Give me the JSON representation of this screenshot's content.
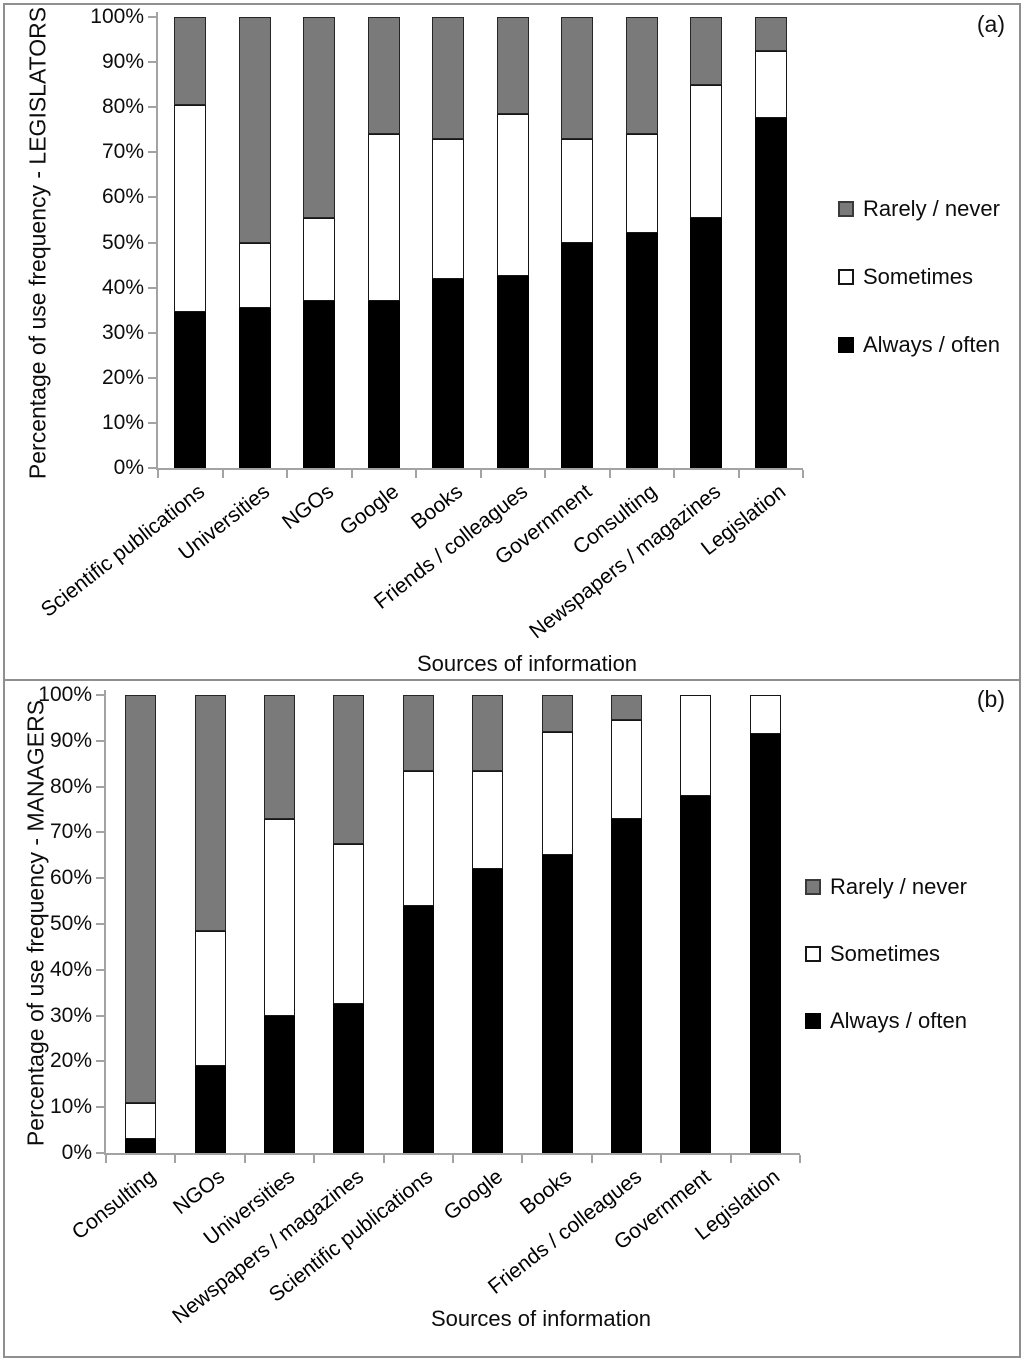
{
  "figure": {
    "background": "#ffffff",
    "border_color": "#8f8f8f",
    "series_colors": {
      "always_often": "#000000",
      "sometimes": "#ffffff",
      "rarely_never": "#7a7a7a"
    }
  },
  "y_axis": {
    "min": 0,
    "max": 100,
    "tick_labels": [
      "0%",
      "10%",
      "20%",
      "30%",
      "40%",
      "50%",
      "60%",
      "70%",
      "80%",
      "90%",
      "100%"
    ]
  },
  "legend": {
    "display_order": [
      "Rarely / never",
      "Sometimes",
      "Always / often"
    ]
  },
  "chart_data": [
    {
      "type": "bar",
      "stacked": true,
      "panel_label": "(a)",
      "ylabel": "Percentage of use frequency - LEGISLATORS",
      "xlabel": "Sources of information",
      "ylim": [
        0,
        100
      ],
      "grid": false,
      "legend_position": "right",
      "categories": [
        "Scientific publications",
        "Universities",
        "NGOs",
        "Google",
        "Books",
        "Friends / colleagues",
        "Government",
        "Consulting",
        "Newspapers / magazines",
        "Legislation"
      ],
      "series": [
        {
          "name": "Always / often",
          "color": "#000000",
          "values": [
            34.5,
            35.5,
            37,
            37,
            42,
            42.5,
            50,
            52,
            55.5,
            77.5
          ]
        },
        {
          "name": "Sometimes",
          "color": "#ffffff",
          "values": [
            46,
            14.5,
            18.5,
            37,
            31,
            36,
            23,
            22,
            29.5,
            15
          ]
        },
        {
          "name": "Rarely / never",
          "color": "#7a7a7a",
          "values": [
            19.5,
            50,
            44.5,
            26,
            27,
            21.5,
            27,
            26,
            15,
            7.5
          ]
        }
      ]
    },
    {
      "type": "bar",
      "stacked": true,
      "panel_label": "(b)",
      "ylabel": "Percentage of use frequency - MANAGERS",
      "xlabel": "Sources of information",
      "ylim": [
        0,
        100
      ],
      "grid": false,
      "legend_position": "right",
      "categories": [
        "Consulting",
        "NGOs",
        "Universities",
        "Newspapers / magazines",
        "Scientific publications",
        "Google",
        "Books",
        "Friends / colleagues",
        "Government",
        "Legislation"
      ],
      "series": [
        {
          "name": "Always / often",
          "color": "#000000",
          "values": [
            3,
            19,
            30,
            32.5,
            54,
            62,
            65,
            73,
            78,
            91.5
          ]
        },
        {
          "name": "Sometimes",
          "color": "#ffffff",
          "values": [
            8,
            29.5,
            43,
            35,
            29.5,
            21.5,
            27,
            21.5,
            22,
            8.5
          ]
        },
        {
          "name": "Rarely / never",
          "color": "#7a7a7a",
          "values": [
            89,
            51.5,
            27,
            32.5,
            16.5,
            16.5,
            8,
            5.5,
            0,
            0
          ]
        }
      ]
    }
  ]
}
